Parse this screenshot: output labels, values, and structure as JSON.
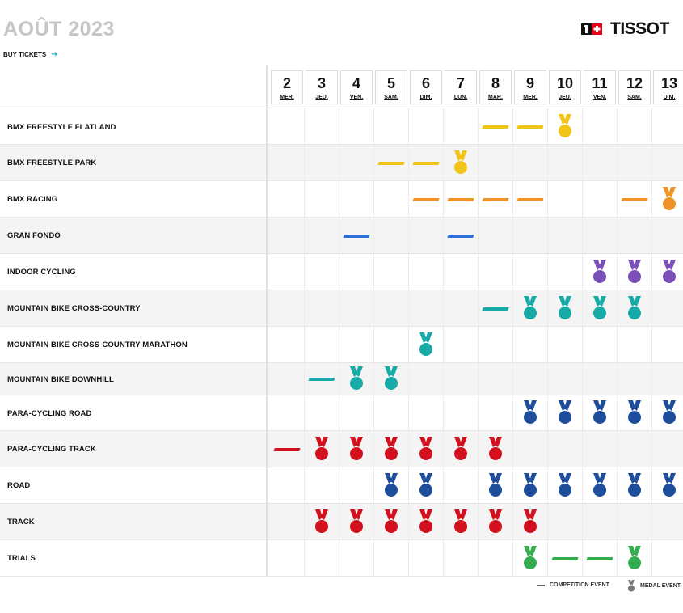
{
  "header": {
    "month": "AOÛT 2023",
    "buy_tickets": "BUY TICKETS",
    "logo_text": "TISSOT"
  },
  "days": [
    {
      "num": "2",
      "dow": "MER."
    },
    {
      "num": "3",
      "dow": "JEU."
    },
    {
      "num": "4",
      "dow": "VEN."
    },
    {
      "num": "5",
      "dow": "SAM."
    },
    {
      "num": "6",
      "dow": "DIM."
    },
    {
      "num": "7",
      "dow": "LUN."
    },
    {
      "num": "8",
      "dow": "MAR."
    },
    {
      "num": "9",
      "dow": "MER."
    },
    {
      "num": "10",
      "dow": "JEU."
    },
    {
      "num": "11",
      "dow": "VEN."
    },
    {
      "num": "12",
      "dow": "SAM."
    },
    {
      "num": "13",
      "dow": "DIM."
    }
  ],
  "sports": [
    {
      "name": "BMX FREESTYLE FLATLAND",
      "color": "#f2c318",
      "competition": [
        "8",
        "9"
      ],
      "medal": [
        "10"
      ]
    },
    {
      "name": "BMX FREESTYLE PARK",
      "color": "#f2c318",
      "competition": [
        "5",
        "6"
      ],
      "medal": [
        "7"
      ]
    },
    {
      "name": "BMX RACING",
      "color": "#ee9325",
      "competition": [
        "6",
        "7",
        "8",
        "9",
        "12"
      ],
      "medal": [
        "13"
      ]
    },
    {
      "name": "GRAN FONDO",
      "color": "#2f6fd8",
      "competition": [
        "4",
        "7"
      ],
      "medal": []
    },
    {
      "name": "INDOOR CYCLING",
      "color": "#7b4fb8",
      "competition": [],
      "medal": [
        "11",
        "12",
        "13"
      ]
    },
    {
      "name": "MOUNTAIN BIKE CROSS-COUNTRY",
      "color": "#17aaa6",
      "competition": [
        "8"
      ],
      "medal": [
        "9",
        "10",
        "11",
        "12"
      ]
    },
    {
      "name": "MOUNTAIN BIKE CROSS-COUNTRY MARATHON",
      "color": "#17aaa6",
      "competition": [],
      "medal": [
        "6"
      ]
    },
    {
      "name": "MOUNTAIN BIKE DOWNHILL",
      "color": "#17aaa6",
      "competition": [
        "3"
      ],
      "medal": [
        "4",
        "5"
      ]
    },
    {
      "name": "PARA-CYCLING ROAD",
      "color": "#1e4d9c",
      "competition": [],
      "medal": [
        "9",
        "10",
        "11",
        "12",
        "13"
      ]
    },
    {
      "name": "PARA-CYCLING TRACK",
      "color": "#d3111e",
      "competition": [
        "2"
      ],
      "medal": [
        "3",
        "4",
        "5",
        "6",
        "7",
        "8"
      ]
    },
    {
      "name": "ROAD",
      "color": "#1e4d9c",
      "competition": [],
      "medal": [
        "5",
        "6",
        "8",
        "9",
        "10",
        "11",
        "12",
        "13"
      ]
    },
    {
      "name": "TRACK",
      "color": "#d3111e",
      "competition": [],
      "medal": [
        "3",
        "4",
        "5",
        "6",
        "7",
        "8",
        "9"
      ]
    },
    {
      "name": "TRIALS",
      "color": "#35ac4e",
      "competition": [
        "10",
        "11"
      ],
      "medal": [
        "9",
        "12"
      ]
    }
  ],
  "legend": {
    "competition": "COMPETITION EVENT",
    "medal": "MEDAL EVENT"
  }
}
